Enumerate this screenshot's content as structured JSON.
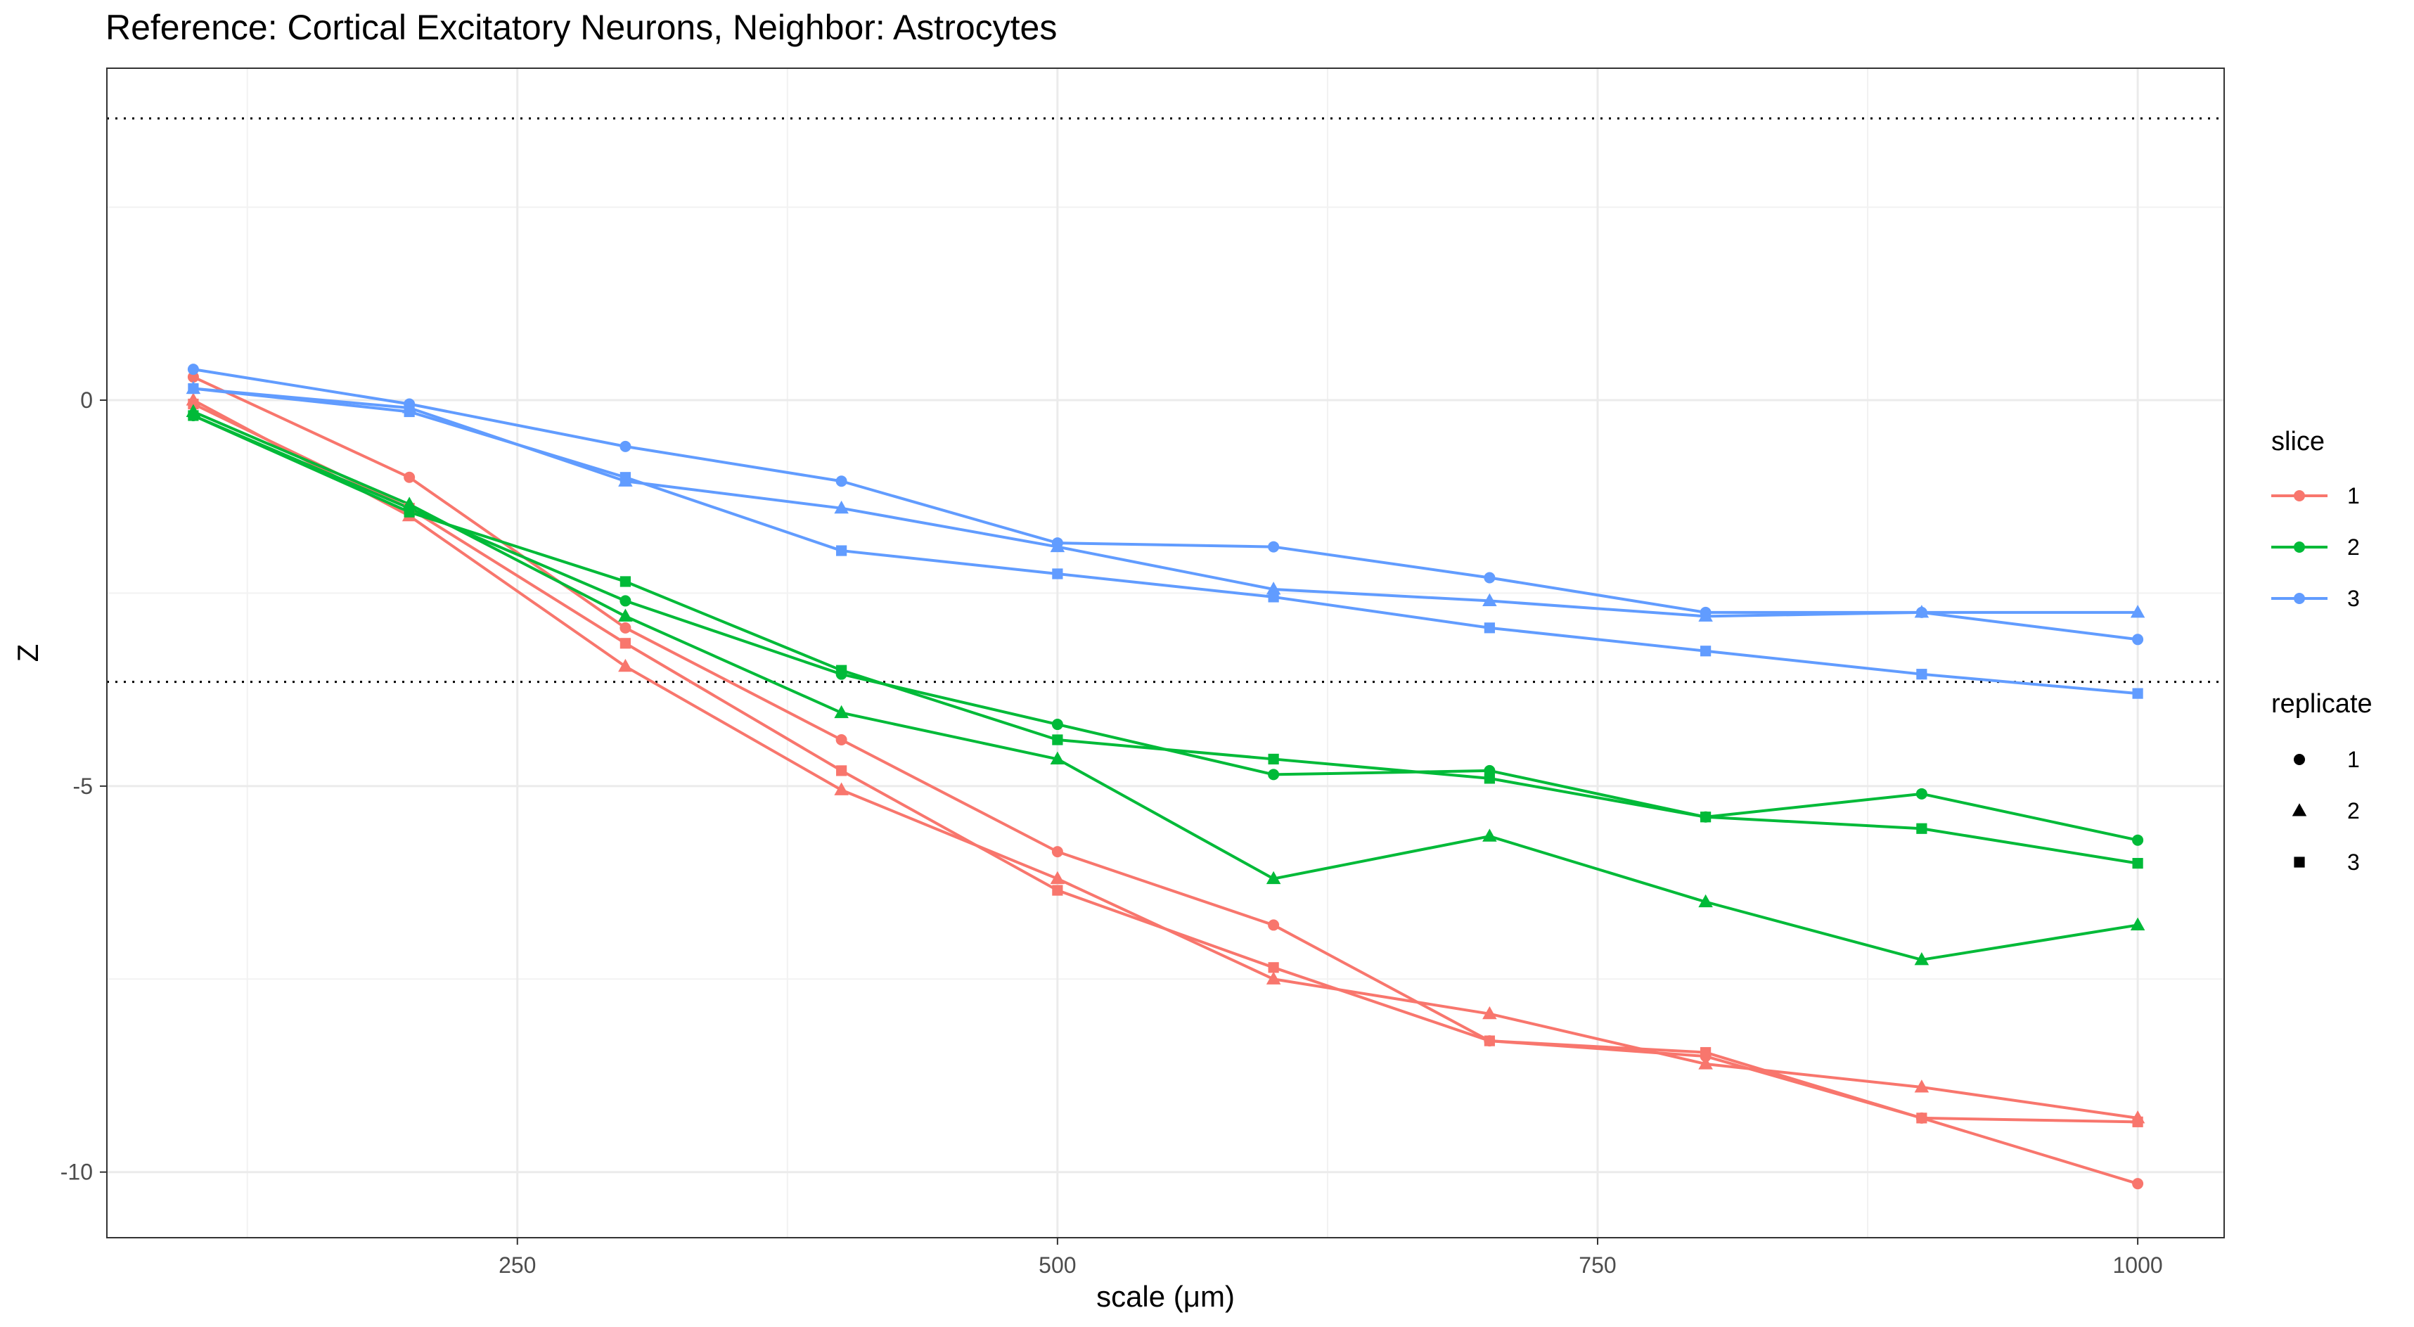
{
  "chart_data": {
    "type": "line",
    "title": "Reference: Cortical Excitatory Neurons, Neighbor: Astrocytes",
    "xlabel": "scale (μm)",
    "ylabel": "Z",
    "xlim": [
      60,
      1040
    ],
    "ylim": [
      -10.85,
      4.3
    ],
    "x_ticks": [
      250,
      500,
      750,
      1000
    ],
    "y_ticks": [
      0,
      -5,
      -10
    ],
    "grid": true,
    "reference_lines": [
      3.65,
      -3.65
    ],
    "x": [
      100,
      200,
      300,
      400,
      500,
      600,
      700,
      800,
      900,
      1000
    ],
    "legend": {
      "placement": "right",
      "color_title": "slice",
      "shape_title": "replicate",
      "color_entries": [
        {
          "label": "1",
          "color": "#F8766D"
        },
        {
          "label": "2",
          "color": "#00BA38"
        },
        {
          "label": "3",
          "color": "#619CFF"
        }
      ],
      "shape_entries": [
        {
          "label": "1",
          "shape": "circle"
        },
        {
          "label": "2",
          "shape": "triangle"
        },
        {
          "label": "3",
          "shape": "square"
        }
      ]
    },
    "series": [
      {
        "slice": "1",
        "replicate": "1",
        "color": "#F8766D",
        "shape": "circle",
        "values": [
          0.3,
          -1.0,
          -2.95,
          -4.4,
          -5.85,
          -6.8,
          -8.3,
          -8.5,
          -9.3,
          -10.15
        ]
      },
      {
        "slice": "1",
        "replicate": "2",
        "color": "#F8766D",
        "shape": "triangle",
        "values": [
          0.0,
          -1.5,
          -3.45,
          -5.05,
          -6.2,
          -7.5,
          -7.95,
          -8.6,
          -8.9,
          -9.3
        ]
      },
      {
        "slice": "1",
        "replicate": "3",
        "color": "#F8766D",
        "shape": "square",
        "values": [
          -0.05,
          -1.4,
          -3.15,
          -4.8,
          -6.35,
          -7.35,
          -8.3,
          -8.45,
          -9.3,
          -9.35
        ]
      },
      {
        "slice": "2",
        "replicate": "1",
        "color": "#00BA38",
        "shape": "circle",
        "values": [
          -0.2,
          -1.4,
          -2.6,
          -3.55,
          -4.2,
          -4.85,
          -4.8,
          -5.4,
          -5.1,
          -5.7
        ]
      },
      {
        "slice": "2",
        "replicate": "2",
        "color": "#00BA38",
        "shape": "triangle",
        "values": [
          -0.15,
          -1.35,
          -2.8,
          -4.05,
          -4.65,
          -6.2,
          -5.65,
          -6.5,
          -7.25,
          -6.8
        ]
      },
      {
        "slice": "2",
        "replicate": "3",
        "color": "#00BA38",
        "shape": "square",
        "values": [
          -0.2,
          -1.45,
          -2.35,
          -3.5,
          -4.4,
          -4.65,
          -4.9,
          -5.4,
          -5.55,
          -6.0
        ]
      },
      {
        "slice": "3",
        "replicate": "1",
        "color": "#619CFF",
        "shape": "circle",
        "values": [
          0.4,
          -0.05,
          -0.6,
          -1.05,
          -1.85,
          -1.9,
          -2.3,
          -2.75,
          -2.75,
          -3.1
        ]
      },
      {
        "slice": "3",
        "replicate": "2",
        "color": "#619CFF",
        "shape": "triangle",
        "values": [
          0.15,
          -0.1,
          -1.05,
          -1.4,
          -1.9,
          -2.45,
          -2.6,
          -2.8,
          -2.75,
          -2.75
        ]
      },
      {
        "slice": "3",
        "replicate": "3",
        "color": "#619CFF",
        "shape": "square",
        "values": [
          0.15,
          -0.15,
          -1.0,
          -1.95,
          -2.25,
          -2.55,
          -2.95,
          -3.25,
          -3.55,
          -3.8
        ]
      }
    ]
  }
}
